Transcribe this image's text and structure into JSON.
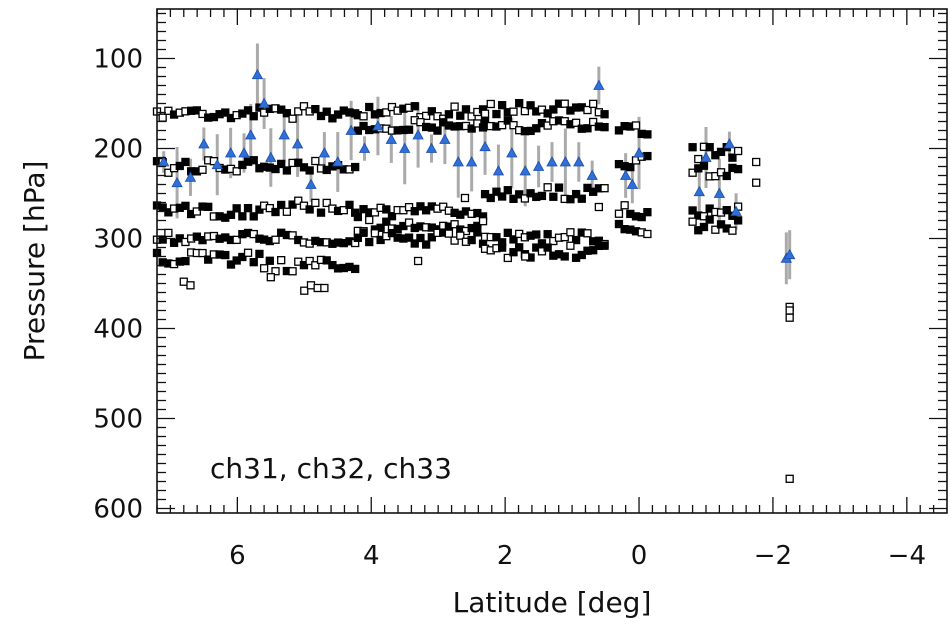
{
  "chart_data": {
    "type": "scatter",
    "xlabel": "Latitude [deg]",
    "ylabel": "Pressure [hPa]",
    "annotation": "ch31, ch32, ch33",
    "xlim": [
      7.2,
      -4.6
    ],
    "ylim": [
      605,
      45
    ],
    "x_ticks": [
      6,
      4,
      2,
      0,
      -2,
      -4
    ],
    "x_tick_labels": [
      "6",
      "4",
      "2",
      "0",
      "−2",
      "−4"
    ],
    "y_ticks": [
      100,
      200,
      300,
      400,
      500,
      600
    ],
    "y_tick_labels": [
      "100",
      "200",
      "300",
      "400",
      "500",
      "600"
    ],
    "grid": false,
    "colors": {
      "squares": "#000000",
      "triangles": "#2f6fd6",
      "error_bars": "#aaaaaa"
    },
    "series": [
      {
        "marker": "square",
        "segments": [
          {
            "x_start": 7.2,
            "x_end": 5.6,
            "levels": [
              160,
              220,
              270,
              298,
              322
            ]
          },
          {
            "x_start": 5.6,
            "x_end": 4.2,
            "levels": [
              160,
              218,
              265,
              300,
              330
            ]
          },
          {
            "x_start": 4.2,
            "x_end": 2.3,
            "levels": [
              160,
              175,
              270,
              285,
              300
            ]
          },
          {
            "x_start": 2.3,
            "x_end": 0.5,
            "levels": [
              155,
              175,
              250,
              300,
              315
            ]
          },
          {
            "x_start": 0.3,
            "x_end": -0.15,
            "levels": [
              180,
              215,
              270,
              290
            ]
          },
          {
            "x_start": -0.8,
            "x_end": -1.5,
            "levels": [
              205,
              225,
              270,
              285
            ]
          }
        ],
        "points": [
          [
            6.8,
            348
          ],
          [
            6.7,
            352
          ],
          [
            5.5,
            343
          ],
          [
            5.0,
            358
          ],
          [
            4.9,
            352
          ],
          [
            4.8,
            355
          ],
          [
            4.7,
            355
          ],
          [
            3.3,
            325
          ],
          [
            1.7,
            320
          ],
          [
            -2.25,
            376
          ],
          [
            -2.25,
            380
          ],
          [
            -2.25,
            388
          ],
          [
            -2.25,
            567
          ],
          [
            -1.75,
            215
          ],
          [
            -1.75,
            238
          ],
          [
            2.6,
            255
          ],
          [
            0.6,
            265
          ]
        ]
      },
      {
        "marker": "triangle",
        "points": [
          [
            7.1,
            215
          ],
          [
            6.9,
            238
          ],
          [
            6.7,
            232
          ],
          [
            6.5,
            195
          ],
          [
            6.3,
            218
          ],
          [
            6.1,
            205
          ],
          [
            5.9,
            205
          ],
          [
            5.8,
            185
          ],
          [
            5.7,
            118
          ],
          [
            5.6,
            150
          ],
          [
            5.5,
            210
          ],
          [
            5.3,
            185
          ],
          [
            5.1,
            195
          ],
          [
            4.9,
            240
          ],
          [
            4.7,
            205
          ],
          [
            4.5,
            215
          ],
          [
            4.3,
            180
          ],
          [
            4.1,
            200
          ],
          [
            3.9,
            175
          ],
          [
            3.7,
            190
          ],
          [
            3.5,
            200
          ],
          [
            3.3,
            185
          ],
          [
            3.1,
            200
          ],
          [
            2.9,
            190
          ],
          [
            2.7,
            215
          ],
          [
            2.5,
            215
          ],
          [
            2.3,
            198
          ],
          [
            2.1,
            225
          ],
          [
            1.9,
            205
          ],
          [
            1.7,
            225
          ],
          [
            1.5,
            220
          ],
          [
            1.3,
            215
          ],
          [
            1.1,
            215
          ],
          [
            0.9,
            215
          ],
          [
            0.7,
            230
          ],
          [
            0.6,
            130
          ],
          [
            0.2,
            230
          ],
          [
            0.1,
            240
          ],
          [
            0.0,
            205
          ],
          [
            -0.9,
            248
          ],
          [
            -1.0,
            210
          ],
          [
            -1.2,
            250
          ],
          [
            -1.35,
            195
          ],
          [
            -1.45,
            270
          ],
          [
            -2.2,
            322
          ],
          [
            -2.25,
            318
          ]
        ]
      }
    ]
  }
}
